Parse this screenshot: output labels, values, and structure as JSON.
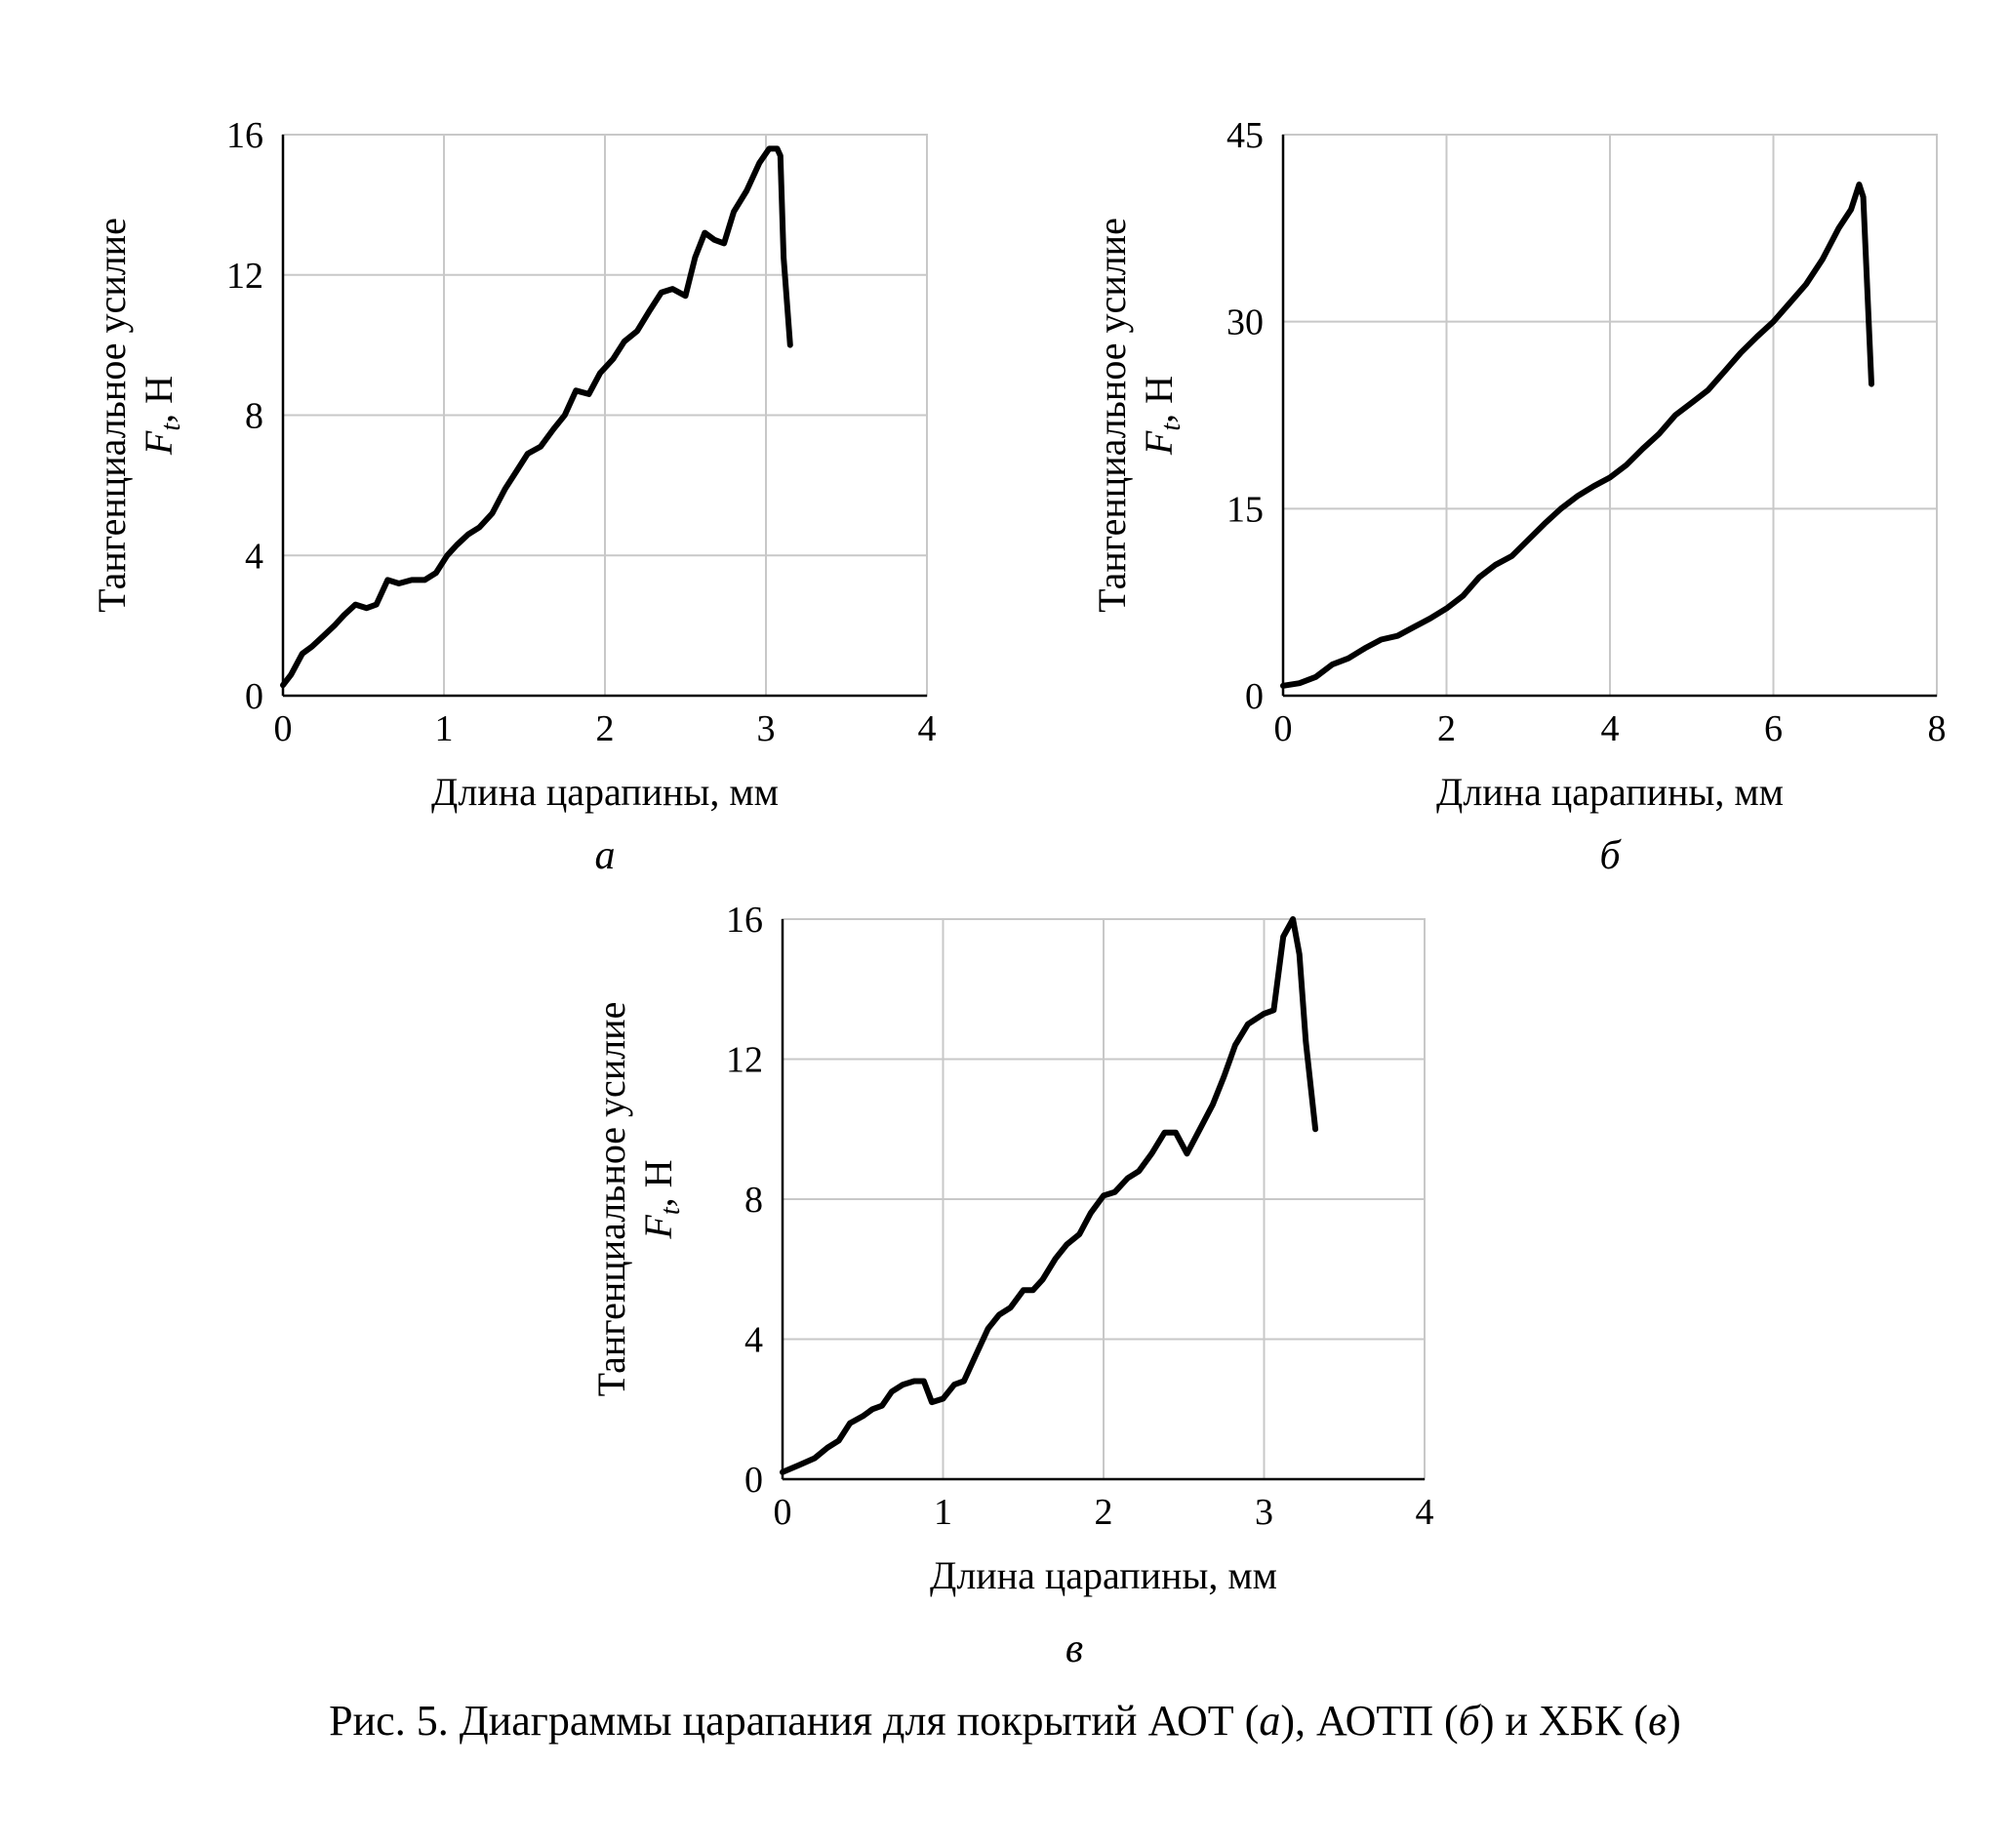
{
  "chart_data": [
    {
      "type": "line",
      "panel": "а",
      "xlabel": "Длина царапины, мм",
      "ylabel_line1": "Тангенциальное усилие",
      "ylabel_symbol": "F",
      "ylabel_subscript": "t",
      "ylabel_unit": ", Н",
      "xlim": [
        0,
        4
      ],
      "ylim": [
        0,
        16
      ],
      "xticks": [
        "0",
        "1",
        "2",
        "3",
        "4"
      ],
      "yticks": [
        "0",
        "4",
        "8",
        "12",
        "16"
      ],
      "grid": true,
      "series": [
        {
          "x": [
            0,
            0.05,
            0.12,
            0.18,
            0.25,
            0.32,
            0.38,
            0.45,
            0.52,
            0.58,
            0.65,
            0.72,
            0.8,
            0.88,
            0.95,
            1.02,
            1.08,
            1.15,
            1.22,
            1.3,
            1.38,
            1.45,
            1.52,
            1.6,
            1.68,
            1.75,
            1.82,
            1.9,
            1.97,
            2.05,
            2.12,
            2.2,
            2.28,
            2.35,
            2.42,
            2.5,
            2.56,
            2.62,
            2.68,
            2.74,
            2.8,
            2.88,
            2.96,
            3.02,
            3.07,
            3.09,
            3.11,
            3.15
          ],
          "values": [
            0.3,
            0.6,
            1.2,
            1.4,
            1.7,
            2.0,
            2.3,
            2.6,
            2.5,
            2.6,
            3.3,
            3.2,
            3.3,
            3.3,
            3.5,
            4.0,
            4.3,
            4.6,
            4.8,
            5.2,
            5.9,
            6.4,
            6.9,
            7.1,
            7.6,
            8.0,
            8.7,
            8.6,
            9.2,
            9.6,
            10.1,
            10.4,
            11.0,
            11.5,
            11.6,
            11.4,
            12.5,
            13.2,
            13.0,
            12.9,
            13.8,
            14.4,
            15.2,
            15.6,
            15.6,
            15.4,
            12.5,
            10.0
          ]
        }
      ]
    },
    {
      "type": "line",
      "panel": "б",
      "xlabel": "Длина царапины, мм",
      "ylabel_line1": "Тангенциальное усилие",
      "ylabel_symbol": "F",
      "ylabel_subscript": "t",
      "ylabel_unit": ", Н",
      "xlim": [
        0,
        8
      ],
      "ylim": [
        0,
        45
      ],
      "xticks": [
        "0",
        "2",
        "4",
        "6",
        "8"
      ],
      "yticks": [
        "0",
        "15",
        "30",
        "45"
      ],
      "grid": true,
      "series": [
        {
          "x": [
            0,
            0.2,
            0.4,
            0.6,
            0.8,
            1.0,
            1.2,
            1.4,
            1.6,
            1.8,
            2.0,
            2.2,
            2.4,
            2.6,
            2.8,
            3.0,
            3.2,
            3.4,
            3.6,
            3.8,
            4.0,
            4.2,
            4.4,
            4.6,
            4.8,
            5.0,
            5.2,
            5.4,
            5.6,
            5.8,
            6.0,
            6.2,
            6.4,
            6.6,
            6.8,
            6.95,
            7.05,
            7.1,
            7.2
          ],
          "values": [
            0.8,
            1.0,
            1.5,
            2.5,
            3.0,
            3.8,
            4.5,
            4.8,
            5.5,
            6.2,
            7.0,
            8.0,
            9.5,
            10.5,
            11.2,
            12.5,
            13.8,
            15.0,
            16.0,
            16.8,
            17.5,
            18.5,
            19.8,
            21.0,
            22.5,
            23.5,
            24.5,
            26.0,
            27.5,
            28.8,
            30.0,
            31.5,
            33.0,
            35.0,
            37.5,
            39.0,
            41.0,
            40.0,
            25.0
          ]
        }
      ]
    },
    {
      "type": "line",
      "panel": "в",
      "xlabel": "Длина царапины, мм",
      "ylabel_line1": "Тангенциальное усилие",
      "ylabel_symbol": "F",
      "ylabel_subscript": "t",
      "ylabel_unit": ", Н",
      "xlim": [
        0,
        4
      ],
      "ylim": [
        0,
        16
      ],
      "xticks": [
        "0",
        "1",
        "2",
        "3",
        "4"
      ],
      "yticks": [
        "0",
        "4",
        "8",
        "12",
        "16"
      ],
      "grid": true,
      "series": [
        {
          "x": [
            0,
            0.1,
            0.2,
            0.28,
            0.35,
            0.42,
            0.5,
            0.56,
            0.62,
            0.68,
            0.75,
            0.82,
            0.88,
            0.93,
            1.0,
            1.07,
            1.13,
            1.2,
            1.28,
            1.35,
            1.42,
            1.5,
            1.56,
            1.62,
            1.7,
            1.77,
            1.85,
            1.92,
            2.0,
            2.07,
            2.15,
            2.22,
            2.3,
            2.38,
            2.45,
            2.52,
            2.6,
            2.68,
            2.75,
            2.82,
            2.9,
            3.0,
            3.06,
            3.12,
            3.18,
            3.22,
            3.26,
            3.32
          ],
          "values": [
            0.2,
            0.4,
            0.6,
            0.9,
            1.1,
            1.6,
            1.8,
            2.0,
            2.1,
            2.5,
            2.7,
            2.8,
            2.8,
            2.2,
            2.3,
            2.7,
            2.8,
            3.5,
            4.3,
            4.7,
            4.9,
            5.4,
            5.4,
            5.7,
            6.3,
            6.7,
            7.0,
            7.6,
            8.1,
            8.2,
            8.6,
            8.8,
            9.3,
            9.9,
            9.9,
            9.3,
            10.0,
            10.7,
            11.5,
            12.4,
            13.0,
            13.3,
            13.4,
            15.5,
            16.0,
            15.0,
            12.5,
            10.0
          ]
        }
      ]
    }
  ],
  "caption": {
    "prefix": "Рис. 5. Диаграммы царапания для покрытий АОТ (",
    "a": "а",
    "mid1": "), АОТП (",
    "b": "б",
    "mid2": ") и ХБК (",
    "c": "в",
    "suffix": ")"
  }
}
